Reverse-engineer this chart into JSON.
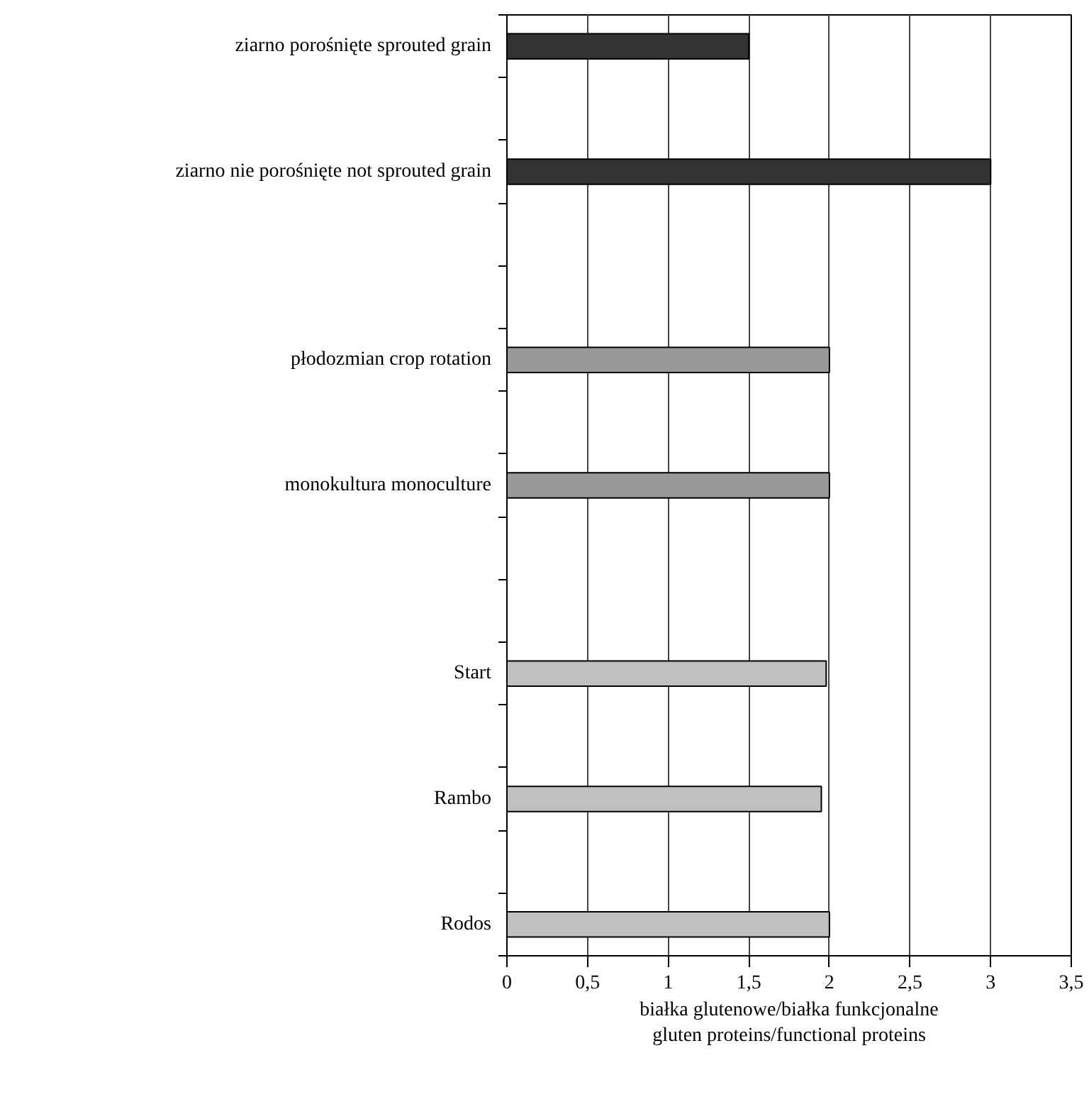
{
  "chart_data": {
    "type": "bar",
    "orientation": "horizontal",
    "categories": [
      "ziarno porośnięte sprouted grain",
      null,
      "ziarno nie porośnięte not sprouted grain",
      null,
      null,
      "płodozmian crop rotation",
      null,
      "monokultura monoculture",
      null,
      null,
      "Start",
      null,
      "Rambo",
      null,
      "Rodos"
    ],
    "values": [
      1.5,
      null,
      3.0,
      null,
      null,
      2.0,
      null,
      2.0,
      null,
      null,
      1.98,
      null,
      1.95,
      null,
      2.0
    ],
    "colors": [
      "#333333",
      null,
      "#333333",
      null,
      null,
      "#999999",
      null,
      "#999999",
      null,
      null,
      "#c0c0c0",
      null,
      "#c0c0c0",
      null,
      "#c0c0c0"
    ],
    "xlabel": "białka glutenowe/białka funkcjonalne\ngluten proteins/functional proteins",
    "xlim": [
      0,
      3.5
    ],
    "xticks": [
      0,
      {
        "value": 0.5,
        "label": "0,5"
      },
      1,
      {
        "value": 1.5,
        "label": "1,5"
      },
      2,
      {
        "value": 2.5,
        "label": "2,5"
      },
      3,
      {
        "value": 3.5,
        "label": "3,5"
      }
    ],
    "grid": "x"
  }
}
